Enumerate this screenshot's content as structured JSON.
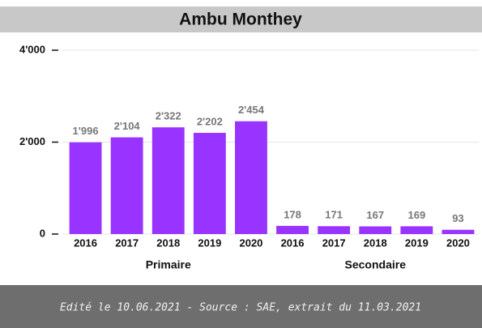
{
  "chart_data": {
    "type": "bar",
    "title": "Ambu Monthey",
    "categories": [
      "2016",
      "2017",
      "2018",
      "2019",
      "2020",
      "2016",
      "2017",
      "2018",
      "2019",
      "2020"
    ],
    "groups": [
      "Primaire",
      "Secondaire"
    ],
    "values": [
      1996,
      2104,
      2322,
      2202,
      2454,
      178,
      171,
      167,
      169,
      93
    ],
    "value_labels": [
      "1'996",
      "2'104",
      "2'322",
      "2'202",
      "2'454",
      "178",
      "171",
      "167",
      "169",
      "93"
    ],
    "color": "#9933ff",
    "ylim": [
      0,
      4000
    ],
    "yticks": [
      {
        "value": 0,
        "label": "0"
      },
      {
        "value": 2000,
        "label": "2'000"
      },
      {
        "value": 4000,
        "label": "4'000"
      }
    ],
    "grid": true,
    "footer": "Edité le 10.06.2021 - Source : SAE, extrait du 11.03.2021"
  }
}
